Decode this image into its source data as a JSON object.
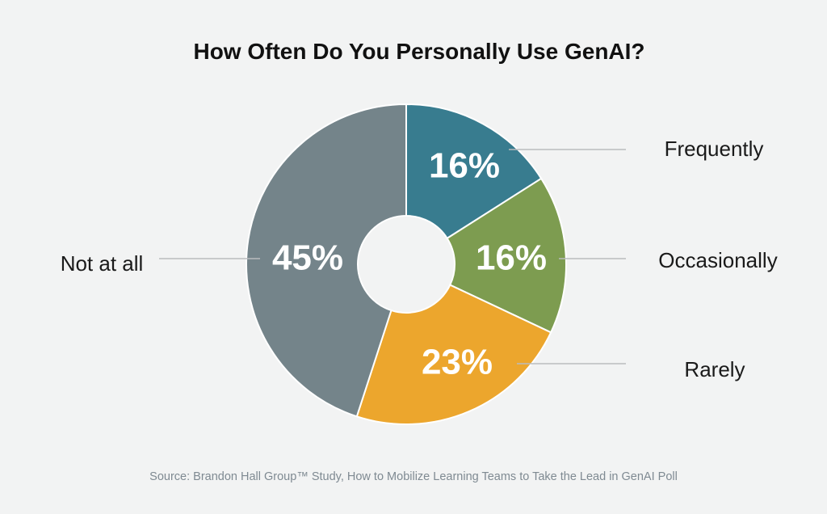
{
  "chart_data": {
    "type": "pie",
    "title": "How Often Do You Personally Use GenAI?",
    "source": "Source: Brandon Hall Group™ Study, How to Mobilize Learning Teams to Take the Lead in GenAI Poll",
    "slices": [
      {
        "label": "Frequently",
        "value": 16,
        "display": "16%",
        "color": "#387c8f"
      },
      {
        "label": "Occasionally",
        "value": 16,
        "display": "16%",
        "color": "#7d9c50"
      },
      {
        "label": "Rarely",
        "value": 23,
        "display": "23%",
        "color": "#eca62d"
      },
      {
        "label": "Not at all",
        "value": 45,
        "display": "45%",
        "color": "#74848a"
      }
    ],
    "donut": true,
    "start_angle": "12 o'clock, clockwise",
    "legend": "none"
  }
}
